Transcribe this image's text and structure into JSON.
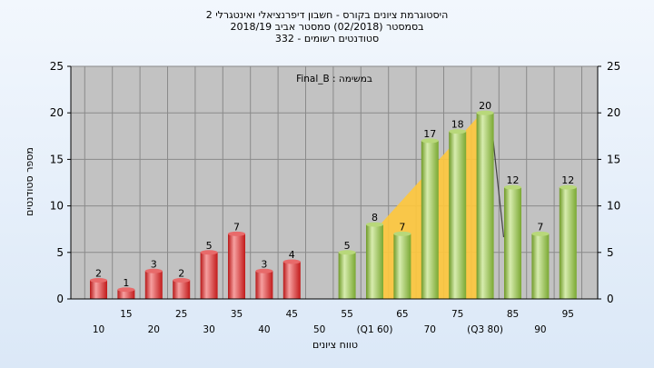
{
  "header": {
    "title_line1": "היסטוגרמת ציונים בקורס - חשבון דיפרנציאלי ואינטגרלי 2",
    "title_line2": "בסמסטר  (02/2018)  סמסטר אביב 2018/19",
    "title_line3": "סטודנטים רשומים - 332"
  },
  "chart_data": {
    "type": "bar",
    "title": "היסטוגרמת ציונים בקורס - חשבון דיפרנציאלי ואינטגרלי 2",
    "ylabel": "מספר סטודנטים",
    "xlabel": "טווח ציונים",
    "ylim": [
      0,
      25
    ],
    "yticks": [
      0,
      5,
      10,
      15,
      20,
      25
    ],
    "grid": true,
    "categories": [
      "10",
      "15",
      "20",
      "25",
      "30",
      "35",
      "40",
      "45",
      "50",
      "55",
      "(Q1 60)",
      "65",
      "70",
      "75",
      "(Q3 80)",
      "85",
      "90",
      "95"
    ],
    "values": [
      2,
      1,
      3,
      2,
      5,
      7,
      3,
      4,
      0,
      5,
      8,
      7,
      17,
      18,
      20,
      12,
      7,
      12
    ],
    "bar_colors": [
      "red",
      "red",
      "red",
      "red",
      "red",
      "red",
      "red",
      "red",
      "none",
      "green",
      "green",
      "green",
      "green",
      "green",
      "green",
      "green",
      "green",
      "green"
    ],
    "colors": {
      "red_light": "#f6a0a0",
      "red_dark": "#b81818",
      "green_light": "#d7ecae",
      "green_dark": "#6f9a28",
      "band": "#ffc83c",
      "plot_bg": "#c2c2c2"
    },
    "annotation": "במשימה : Final_B"
  }
}
